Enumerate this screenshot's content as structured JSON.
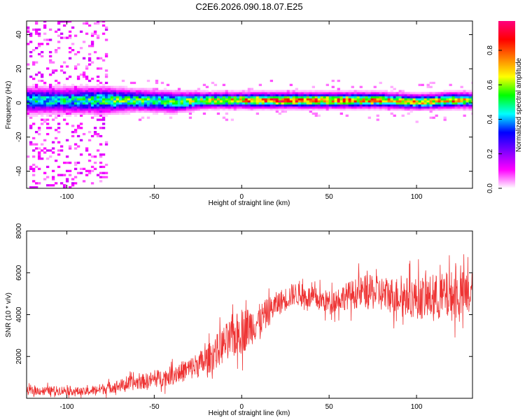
{
  "title": "C2E6.2026.090.18.07.E25",
  "chart_data": [
    {
      "type": "heatmap",
      "title": "C2E6.2026.090.18.07.E25",
      "xlabel": "Height of straight line (km)",
      "ylabel": "Frequency (Hz)",
      "xlim": [
        -123,
        132
      ],
      "ylim": [
        -50,
        48
      ],
      "xticks": [
        -100,
        -50,
        0,
        50,
        100
      ],
      "yticks": [
        -40,
        -20,
        0,
        20,
        40
      ],
      "description_points": {
        "x_km": [
          -120,
          -100,
          -80,
          -60,
          -40,
          -20,
          0,
          20,
          40,
          60,
          80,
          100,
          120,
          130
        ],
        "band_center_hz": [
          1,
          1,
          1,
          1,
          0,
          1,
          1,
          1,
          1,
          1,
          1,
          0,
          1,
          1
        ],
        "band_halfwidth_hz": [
          5,
          5,
          5,
          4,
          4,
          3,
          3,
          3,
          3,
          3,
          3,
          3,
          3,
          3
        ],
        "peak_amplitude": [
          0.5,
          0.5,
          0.6,
          0.6,
          0.6,
          0.7,
          0.8,
          0.9,
          0.85,
          0.85,
          0.8,
          0.75,
          0.8,
          0.7
        ]
      },
      "colorbar": {
        "label": "Normalized spectral amplitude",
        "range": [
          0,
          0.97
        ],
        "ticks": [
          0.0,
          0.2,
          0.4,
          0.6,
          0.8
        ],
        "tick_labels": [
          "0.0",
          "0.2",
          "0.4",
          "0.6",
          "0.8"
        ],
        "colors": [
          "#ffffff",
          "#ff00ff",
          "#7f00ff",
          "#0000ff",
          "#00ffff",
          "#00ff00",
          "#ffff00",
          "#ff7f00",
          "#ff0000",
          "#ff007f"
        ]
      }
    },
    {
      "type": "line",
      "xlabel": "Height of straight line (km)",
      "ylabel": "SNR (10 * v/v)",
      "xlim": [
        -123,
        132
      ],
      "ylim": [
        0,
        8000
      ],
      "xticks": [
        -100,
        -50,
        0,
        50,
        100
      ],
      "yticks": [
        2000,
        4000,
        6000,
        8000
      ],
      "color": "#ee3333",
      "series": [
        {
          "name": "SNR",
          "x": [
            -123,
            -100,
            -90,
            -80,
            -70,
            -60,
            -50,
            -40,
            -30,
            -20,
            -10,
            0,
            10,
            20,
            30,
            40,
            50,
            60,
            70,
            80,
            90,
            100,
            110,
            120,
            132
          ],
          "mean": [
            350,
            380,
            300,
            450,
            600,
            750,
            900,
            1100,
            1400,
            1800,
            2600,
            3200,
            3700,
            4500,
            5000,
            4800,
            4600,
            4900,
            5100,
            5000,
            4900,
            4800,
            4800,
            4900,
            5000
          ],
          "spread": [
            200,
            220,
            200,
            260,
            300,
            350,
            400,
            450,
            550,
            700,
            900,
            1100,
            800,
            600,
            550,
            550,
            550,
            650,
            800,
            850,
            900,
            1000,
            1100,
            1200,
            1100
          ]
        }
      ]
    }
  ]
}
